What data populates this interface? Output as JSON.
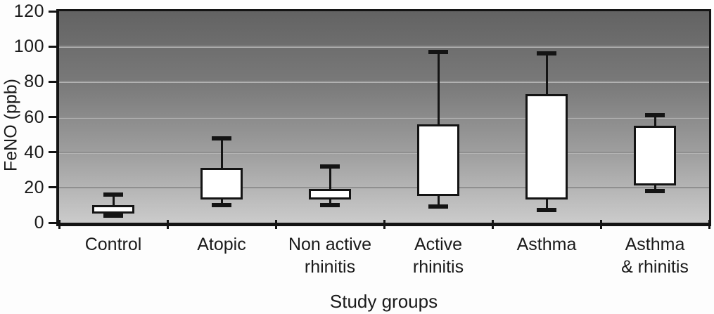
{
  "chart_data": {
    "type": "box",
    "title": "",
    "xlabel": "Study groups",
    "ylabel": "FeNO (ppb)",
    "ylim": [
      0,
      120
    ],
    "yticks": [
      0,
      20,
      40,
      60,
      80,
      100,
      120
    ],
    "grid": "horizontal",
    "legend": "none",
    "median_line_visible": false,
    "categories": [
      "Control",
      "Atopic",
      "Non active rhinitis",
      "Active rhinitis",
      "Asthma",
      "Asthma & rhinitis"
    ],
    "category_label_lines": [
      [
        "Control"
      ],
      [
        "Atopic"
      ],
      [
        "Non active",
        "rhinitis"
      ],
      [
        "Active",
        "rhinitis"
      ],
      [
        "Asthma"
      ],
      [
        "Asthma",
        "& rhinitis"
      ]
    ],
    "series": [
      {
        "name": "Control",
        "whisker_low": 4,
        "q1": 5,
        "q3": 10,
        "whisker_high": 16
      },
      {
        "name": "Atopic",
        "whisker_low": 10,
        "q1": 13,
        "q3": 31,
        "whisker_high": 48
      },
      {
        "name": "Non active rhinitis",
        "whisker_low": 10,
        "q1": 13,
        "q3": 19,
        "whisker_high": 32
      },
      {
        "name": "Active rhinitis",
        "whisker_low": 9,
        "q1": 15,
        "q3": 56,
        "whisker_high": 97
      },
      {
        "name": "Asthma",
        "whisker_low": 7,
        "q1": 13,
        "q3": 73,
        "whisker_high": 96
      },
      {
        "name": "Asthma & rhinitis",
        "whisker_low": 18,
        "q1": 21,
        "q3": 55,
        "whisker_high": 61
      }
    ],
    "style": {
      "box_fill": "#ffffff",
      "line_color": "#141414",
      "gridline_color": "#8f8f8f",
      "plot_gradient_top": "#636363",
      "plot_gradient_bottom": "#cbcbcb",
      "background": "#fdfdfd"
    }
  }
}
